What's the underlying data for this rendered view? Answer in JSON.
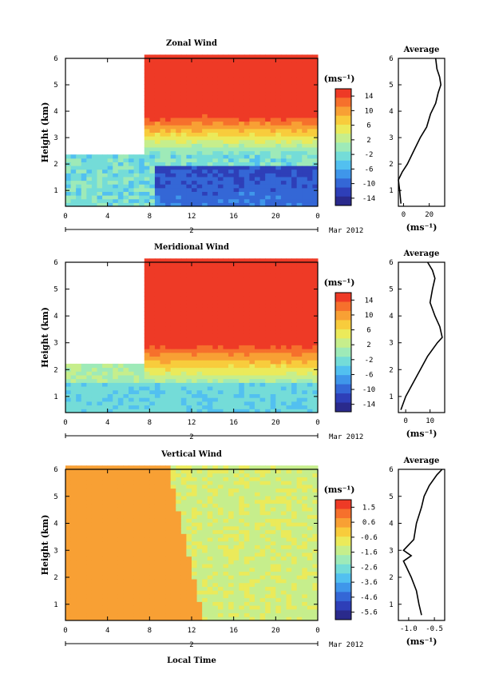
{
  "chart_data": [
    {
      "type": "heatmap",
      "title": "Zonal Wind",
      "ylabel": "Height (km)",
      "unit_label": "(ms⁻¹)",
      "x_ticks": [
        "0",
        "4",
        "8",
        "12",
        "16",
        "20",
        "0"
      ],
      "y_ticks": [
        "1",
        "2",
        "3",
        "4",
        "5",
        "6"
      ],
      "day_label": "2",
      "date_label": "Mar 2012",
      "colorbar_ticks": [
        "14",
        "10",
        "6",
        "2",
        "-2",
        "-6",
        "-10",
        "-14"
      ],
      "xlim": [
        0,
        24
      ],
      "ylim": [
        0.4,
        6.0
      ],
      "fields": {
        "low": -12,
        "high": 16,
        "onset_hour": 7.5,
        "cont_hour": 6.0
      },
      "average": {
        "title": "Average",
        "x_ticks": [
          "0",
          "20"
        ],
        "xlabel": "(ms⁻¹)",
        "xlim": [
          -4,
          32
        ],
        "profile": [
          [
            -2,
            0.5
          ],
          [
            -3,
            1.0
          ],
          [
            -4,
            1.4
          ],
          [
            -1,
            1.7
          ],
          [
            3,
            2.0
          ],
          [
            8,
            2.5
          ],
          [
            13,
            3.0
          ],
          [
            18,
            3.4
          ],
          [
            21,
            3.9
          ],
          [
            25,
            4.3
          ],
          [
            27,
            4.7
          ],
          [
            29,
            5.0
          ],
          [
            28,
            5.3
          ],
          [
            26,
            5.6
          ],
          [
            25,
            6.0
          ]
        ]
      }
    },
    {
      "type": "heatmap",
      "title": "Meridional Wind",
      "ylabel": "Height (km)",
      "unit_label": "(ms⁻¹)",
      "x_ticks": [
        "0",
        "4",
        "8",
        "12",
        "16",
        "20",
        "0"
      ],
      "y_ticks": [
        "1",
        "2",
        "3",
        "4",
        "5",
        "6"
      ],
      "day_label": "2",
      "date_label": "Mar 2012",
      "colorbar_ticks": [
        "14",
        "10",
        "6",
        "2",
        "-2",
        "-6",
        "-10",
        "-14"
      ],
      "xlim": [
        0,
        24
      ],
      "ylim": [
        0.4,
        6.0
      ],
      "fields": {
        "low": -3,
        "high": 15,
        "onset_hour": 7.5,
        "cont_hour": 6.0
      },
      "average": {
        "title": "Average",
        "x_ticks": [
          "0",
          "10"
        ],
        "xlabel": "(ms⁻¹)",
        "xlim": [
          -3,
          16
        ],
        "profile": [
          [
            -2,
            0.5
          ],
          [
            0,
            1.0
          ],
          [
            3,
            1.5
          ],
          [
            6,
            2.0
          ],
          [
            9,
            2.5
          ],
          [
            13,
            3.0
          ],
          [
            15,
            3.2
          ],
          [
            14,
            3.6
          ],
          [
            12,
            4.0
          ],
          [
            10,
            4.5
          ],
          [
            11,
            5.0
          ],
          [
            12,
            5.4
          ],
          [
            11,
            5.7
          ],
          [
            9,
            6.0
          ]
        ]
      }
    },
    {
      "type": "heatmap",
      "title": "Vertical Wind",
      "ylabel": "Height (km)",
      "xlabel": "Local Time",
      "unit_label": "(ms⁻¹)",
      "x_ticks": [
        "0",
        "4",
        "8",
        "12",
        "16",
        "20",
        "0"
      ],
      "y_ticks": [
        "1",
        "2",
        "3",
        "4",
        "5",
        "6"
      ],
      "day_label": "2",
      "date_label": "Mar 2012",
      "colorbar_ticks": [
        "1.5",
        "0.6",
        "-0.6",
        "-1.6",
        "-2.6",
        "-3.6",
        "-4.6",
        "-5.6"
      ],
      "xlim": [
        0,
        24
      ],
      "ylim": [
        0.4,
        6.0
      ],
      "fields": {
        "day_value": 0.5,
        "night_value": -1.6,
        "transition_hour": 12.5
      },
      "average": {
        "title": "Average",
        "x_ticks": [
          "-1.0",
          "-0.5"
        ],
        "xlabel": "(ms⁻¹)",
        "xlim": [
          -1.2,
          -0.3
        ],
        "profile": [
          [
            -0.75,
            0.6
          ],
          [
            -0.8,
            1.0
          ],
          [
            -0.85,
            1.5
          ],
          [
            -0.95,
            2.0
          ],
          [
            -1.05,
            2.4
          ],
          [
            -1.1,
            2.6
          ],
          [
            -0.95,
            2.8
          ],
          [
            -1.1,
            3.0
          ],
          [
            -0.9,
            3.4
          ],
          [
            -0.85,
            4.0
          ],
          [
            -0.75,
            4.6
          ],
          [
            -0.7,
            5.0
          ],
          [
            -0.6,
            5.4
          ],
          [
            -0.45,
            5.8
          ],
          [
            -0.35,
            6.0
          ]
        ]
      }
    }
  ]
}
